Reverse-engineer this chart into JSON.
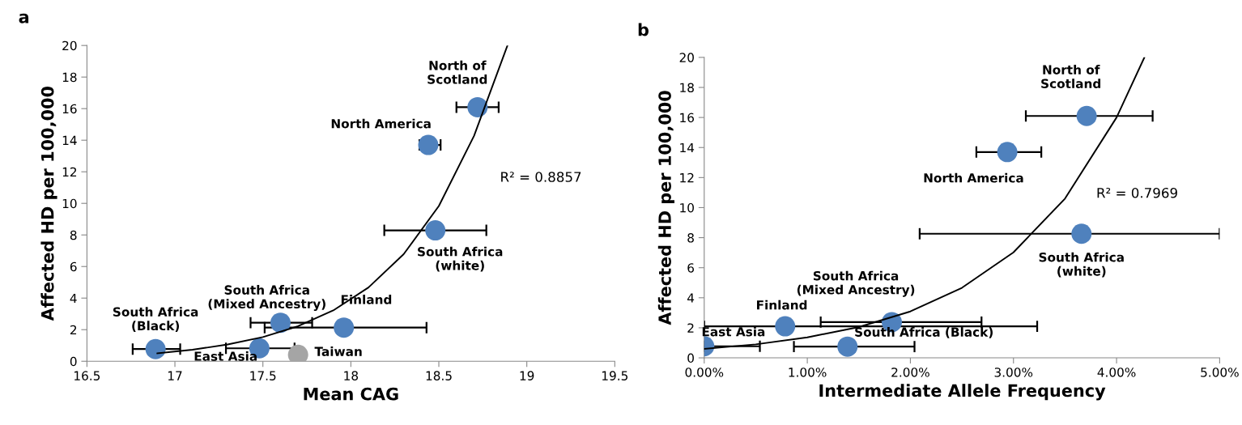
{
  "chart_data": [
    {
      "type": "scatter",
      "title": "a",
      "xlabel": "Mean CAG",
      "ylabel": "Affected HD per 100,000",
      "xlim": [
        16.5,
        19.5
      ],
      "xticks": [
        16.5,
        17,
        17.5,
        18,
        18.5,
        19,
        19.5
      ],
      "ylim": [
        0,
        20
      ],
      "yticks": [
        0,
        2,
        4,
        6,
        8,
        10,
        12,
        14,
        16,
        18,
        20
      ],
      "grid": false,
      "legend": false,
      "marker": "circle",
      "annotations": [
        "R² = 0.8857"
      ],
      "series": [
        {
          "name": "South Africa\n(Black)",
          "color": "#4f81bd",
          "x": [
            16.89
          ],
          "values": [
            0.77
          ],
          "xerrors": [
            [
              16.76,
              17.03
            ]
          ]
        },
        {
          "name": "East Asia",
          "color": "#4f81bd",
          "x": [
            17.48
          ],
          "values": [
            0.82
          ],
          "xerrors": [
            [
              17.29,
              17.68
            ]
          ]
        },
        {
          "name": "Taiwan",
          "color": "#a5a5a5",
          "x": [
            17.7
          ],
          "values": [
            0.41
          ]
        },
        {
          "name": "South Africa\n(Mixed Ancestry)",
          "color": "#4f81bd",
          "x": [
            17.6
          ],
          "values": [
            2.44
          ],
          "xerrors": [
            [
              17.43,
              17.78
            ]
          ]
        },
        {
          "name": "Finland",
          "color": "#4f81bd",
          "x": [
            17.96
          ],
          "values": [
            2.13
          ],
          "xerrors": [
            [
              17.51,
              18.43
            ]
          ]
        },
        {
          "name": "South Africa\n(white)",
          "color": "#4f81bd",
          "x": [
            18.48
          ],
          "values": [
            8.29
          ],
          "xerrors": [
            [
              18.19,
              18.77
            ]
          ]
        },
        {
          "name": "North America",
          "color": "#4f81bd",
          "x": [
            18.44
          ],
          "values": [
            13.7
          ],
          "xerrors": [
            [
              18.39,
              18.51
            ]
          ]
        },
        {
          "name": "North of\nScotland",
          "color": "#4f81bd",
          "x": [
            18.72
          ],
          "values": [
            16.09
          ],
          "xerrors": [
            [
              18.6,
              18.84
            ]
          ]
        },
        {
          "type": "line",
          "color": "#000000",
          "marker": "none",
          "x": [
            16.9,
            17.1,
            17.3,
            17.5,
            17.7,
            17.9,
            18.1,
            18.3,
            18.5,
            18.7,
            18.89
          ],
          "values": [
            0.5,
            0.73,
            1.06,
            1.53,
            2.22,
            3.22,
            4.67,
            6.78,
            9.83,
            14.27,
            20
          ]
        }
      ]
    },
    {
      "type": "scatter",
      "title": "b",
      "xlabel": "Intermediate Allele Frequency",
      "ylabel": "Affected HD per 100,000",
      "xlim": [
        0,
        5
      ],
      "xticks": [
        {
          "value": 0,
          "label": "0.00%"
        },
        {
          "value": 1,
          "label": "1.00%"
        },
        {
          "value": 2,
          "label": "2.00%"
        },
        {
          "value": 3,
          "label": "3.00%"
        },
        {
          "value": 4,
          "label": "4.00%"
        },
        {
          "value": 5,
          "label": "5.00%"
        }
      ],
      "ylim": [
        0,
        20
      ],
      "yticks": [
        0,
        2,
        4,
        6,
        8,
        10,
        12,
        14,
        16,
        18,
        20
      ],
      "grid": false,
      "legend": false,
      "marker": "circle",
      "annotations": [
        "R² = 0.7969"
      ],
      "series": [
        {
          "name": "East Asia",
          "color": "#4f81bd",
          "x": [
            0.0
          ],
          "values": [
            0.77
          ],
          "xerrors": [
            [
              0.0,
              0.54
            ]
          ]
        },
        {
          "name": "Finland",
          "color": "#4f81bd",
          "x": [
            0.785
          ],
          "values": [
            2.1
          ],
          "xerrors": [
            [
              0.0,
              3.23
            ]
          ]
        },
        {
          "name": "South Africa (Black)",
          "color": "#4f81bd",
          "x": [
            1.39
          ],
          "values": [
            0.75
          ],
          "xerrors": [
            [
              0.87,
              2.04
            ]
          ]
        },
        {
          "name": "South Africa\n(Mixed Ancestry)",
          "color": "#4f81bd",
          "x": [
            1.82
          ],
          "values": [
            2.38
          ],
          "xerrors": [
            [
              1.13,
              2.69
            ]
          ]
        },
        {
          "name": "North America",
          "color": "#4f81bd",
          "x": [
            2.94
          ],
          "values": [
            13.7
          ],
          "xerrors": [
            [
              2.64,
              3.27
            ]
          ]
        },
        {
          "name": "North of\nScotland",
          "color": "#4f81bd",
          "x": [
            3.71
          ],
          "values": [
            16.1
          ],
          "xerrors": [
            [
              3.12,
              4.35
            ]
          ]
        },
        {
          "name": "South Africa\n(white)",
          "color": "#4f81bd",
          "x": [
            3.66
          ],
          "values": [
            8.26
          ],
          "xerrors": [
            [
              2.09,
              5.0
            ]
          ]
        },
        {
          "type": "line",
          "color": "#000000",
          "marker": "none",
          "x": [
            0,
            0.5,
            1,
            1.5,
            2,
            2.5,
            3,
            3.5,
            4,
            4.27
          ],
          "values": [
            0.6,
            0.9,
            1.36,
            2.05,
            3.09,
            4.66,
            7.02,
            10.6,
            16.0,
            20
          ]
        }
      ]
    }
  ]
}
